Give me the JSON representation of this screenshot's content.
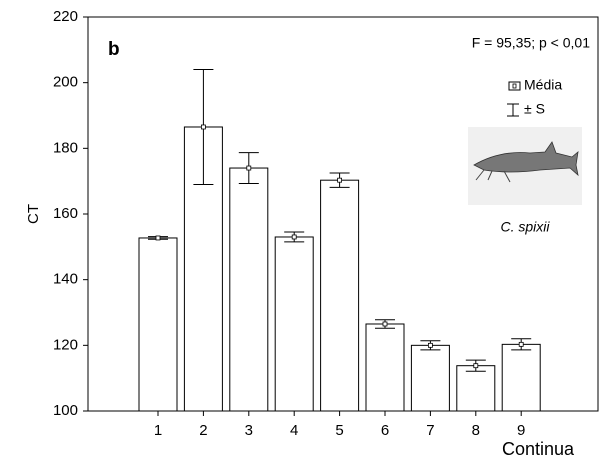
{
  "chart_data": {
    "type": "bar",
    "panel_label": "b",
    "annotation": "F = 95,35; p < 0,01",
    "species": "C. spixii",
    "y_label": "CT",
    "x_label": "Continua",
    "legend": {
      "mean": "Média",
      "error": "± S"
    },
    "categories": [
      "1",
      "2",
      "3",
      "4",
      "5",
      "6",
      "7",
      "8",
      "9"
    ],
    "values": [
      152.7,
      186.5,
      174,
      153,
      170.3,
      126.5,
      120,
      113.8,
      120.3
    ],
    "errors": [
      0.4,
      17.5,
      4.7,
      1.5,
      2.2,
      1.3,
      1.4,
      1.7,
      1.7
    ],
    "color": "#ffffff",
    "ylim": [
      100,
      220
    ],
    "yticks": [
      100,
      120,
      140,
      160,
      180,
      200,
      220
    ]
  }
}
